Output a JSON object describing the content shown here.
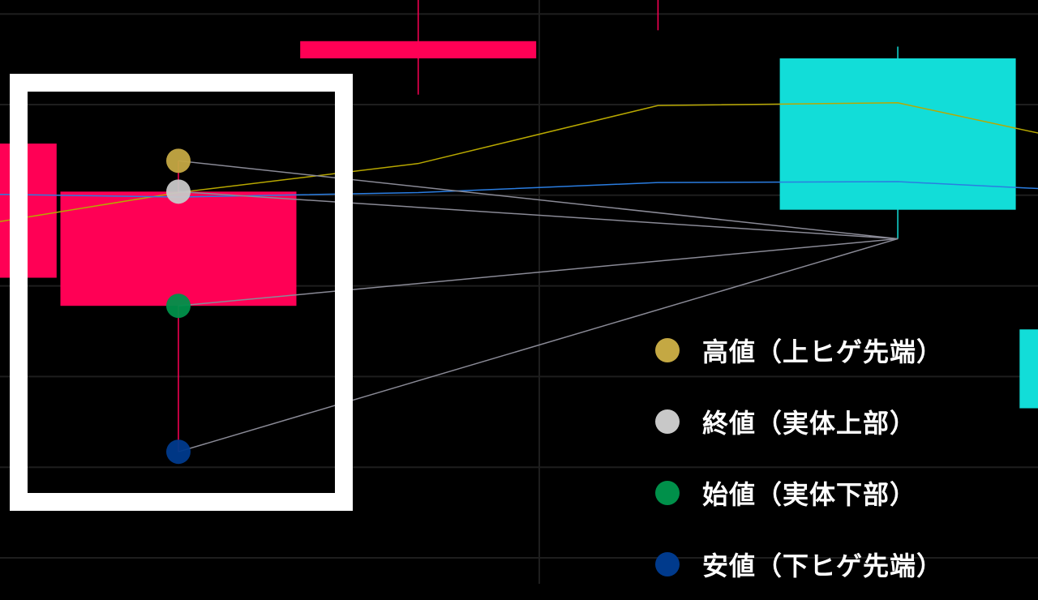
{
  "chart_data": {
    "type": "candlestick",
    "title": "",
    "xlabel": "",
    "ylabel": "",
    "grid": true,
    "legend_placement": "bottom-right",
    "colors": {
      "bearish": "#ff0055",
      "bullish": "#12ddd8",
      "ma_yellow": "#b8a800",
      "ma_blue": "#2a7de1",
      "grid": "#1e1e1e",
      "connector": "#8a8a96",
      "highlight_frame": "#ffffff"
    },
    "candles": [
      {
        "index": -1,
        "direction": "bearish",
        "open": 3.09,
        "close": 4.57,
        "high": null,
        "low": null
      },
      {
        "index": 0,
        "direction": "bearish",
        "open": 2.78,
        "close": 4.04,
        "high": 4.38,
        "low": 1.17,
        "highlighted": true
      },
      {
        "index": 1,
        "direction": "bearish",
        "open": 5.51,
        "close": 5.7,
        "high": 6.2,
        "low": 5.11
      },
      {
        "index": 2,
        "direction": "bearish",
        "open": null,
        "close": null,
        "high": 6.2,
        "low": 5.82
      },
      {
        "index": 3,
        "direction": "bullish",
        "open": 3.84,
        "close": 5.51,
        "high": 5.64,
        "low": 3.52
      },
      {
        "index": 4,
        "direction": "bullish",
        "open": 1.65,
        "close": 2.52,
        "high": null,
        "low": null
      }
    ],
    "moving_averages": [
      {
        "color": "#b8a800",
        "values": [
          3.6,
          4.03,
          4.35,
          4.99,
          5.02,
          4.45
        ]
      },
      {
        "color": "#2a7de1",
        "values": [
          4.02,
          3.98,
          4.03,
          4.14,
          4.15,
          4.02
        ]
      }
    ],
    "legend": [
      {
        "label": "高値（上ヒゲ先端）",
        "color": "#c4a843",
        "marks": "high"
      },
      {
        "label": "終値（実体上部）",
        "color": "#c8c8c8",
        "marks": "close"
      },
      {
        "label": "始値（実体下部）",
        "color": "#00904a",
        "marks": "open"
      },
      {
        "label": "安値（下ヒゲ先端）",
        "color": "#003a8c",
        "marks": "low"
      }
    ]
  }
}
